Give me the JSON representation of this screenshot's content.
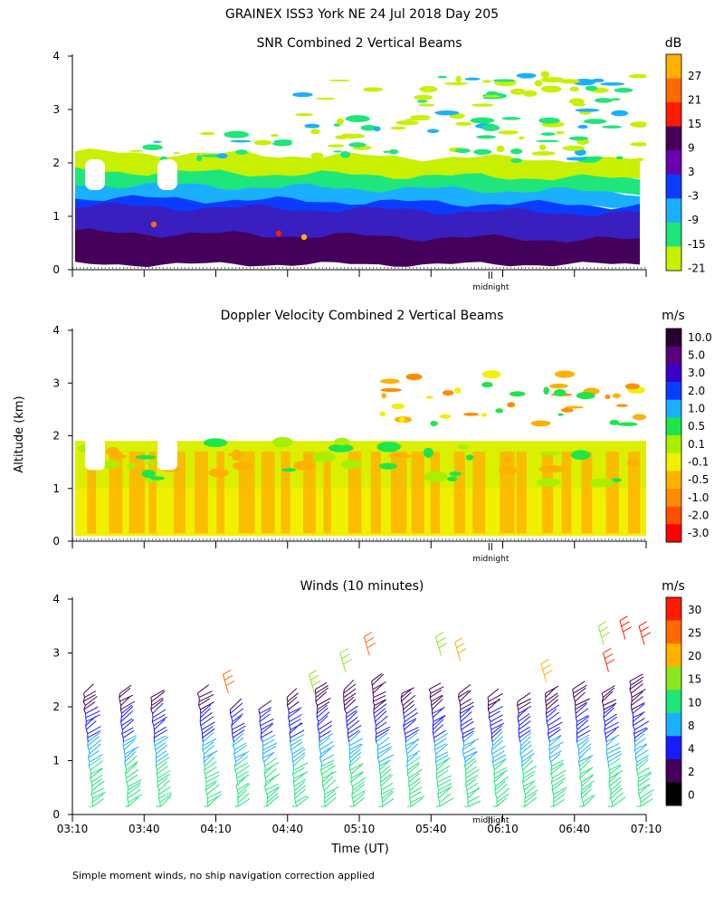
{
  "figure": {
    "title": "GRAINEX ISS3 York NE  24 Jul 2018 Day 205",
    "footnote": "Simple moment winds, no ship navigation correction applied",
    "shared_ylabel": "Altitude (km)",
    "xlabel": "Time (UT)",
    "midnight_label": "midnight"
  },
  "chart_data": [
    {
      "type": "heatmap",
      "title": "SNR Combined 2 Vertical Beams",
      "ylabel": "Altitude (km)",
      "ylim": [
        0,
        4
      ],
      "yticks": [
        "0",
        "1",
        "2",
        "3",
        "4"
      ],
      "xlim_minutes": [
        190,
        430
      ],
      "colorbar_unit": "dB",
      "colorbar_labels": [
        "27",
        "21",
        "15",
        "9",
        "3",
        "-3",
        "-9",
        "-15",
        "-21"
      ],
      "colorbar_colors": [
        "#ffb000",
        "#ff6a00",
        "#ff1a00",
        "#44005a",
        "#6a00b0",
        "#0a3cff",
        "#1ab0ff",
        "#1ee67a",
        "#c8f000"
      ],
      "field_layers": [
        {
          "from_km": 0.1,
          "to_km": 0.7,
          "db_level": "9",
          "color": "#44005a"
        },
        {
          "from_km": 0.5,
          "to_km": 1.2,
          "db_level": "3",
          "color": "#3a1fc0"
        },
        {
          "from_km": 0.9,
          "to_km": 1.35,
          "db_level": "-3",
          "color": "#0a3cff"
        },
        {
          "from_km": 1.2,
          "to_km": 1.6,
          "db_level": "-9",
          "color": "#1ab0ff"
        },
        {
          "from_km": 1.45,
          "to_km": 1.85,
          "db_level": "-15",
          "color": "#1ee67a"
        },
        {
          "from_km": 1.7,
          "to_km": 2.2,
          "db_level": "-21",
          "color": "#c8f000"
        }
      ]
    },
    {
      "type": "heatmap",
      "title": "Doppler Velocity Combined 2 Vertical Beams",
      "ylabel": "Altitude (km)",
      "ylim": [
        0,
        4
      ],
      "yticks": [
        "0",
        "1",
        "2",
        "3",
        "4"
      ],
      "xlim_minutes": [
        190,
        430
      ],
      "colorbar_unit": "m/s",
      "colorbar_labels": [
        "10.0",
        "5.0",
        "3.0",
        "2.0",
        "1.0",
        "0.5",
        "0.1",
        "-0.1",
        "-0.5",
        "-1.0",
        "-2.0",
        "-3.0"
      ],
      "colorbar_colors": [
        "#2a0030",
        "#5a007a",
        "#3a00c8",
        "#0a3cff",
        "#1ab0ff",
        "#1ee64a",
        "#a8f000",
        "#f0f000",
        "#ffb000",
        "#ff8c00",
        "#ff5000",
        "#ff0000"
      ],
      "field_layers": [
        {
          "from_km": 0.1,
          "to_km": 1.9,
          "mps_level": "-0.1",
          "color": "#f0f000"
        },
        {
          "from_km": 1.0,
          "to_km": 1.9,
          "mps_level": "0.1",
          "color": "#a8f000"
        }
      ]
    },
    {
      "type": "scatter",
      "title": "Winds (10 minutes)",
      "ylabel": "Altitude (km)",
      "ylim": [
        0,
        4
      ],
      "yticks": [
        "0",
        "1",
        "2",
        "3",
        "4"
      ],
      "xlim_minutes": [
        190,
        430
      ],
      "xtick_minutes": [
        190,
        220,
        250,
        280,
        310,
        340,
        370,
        400,
        430
      ],
      "xtick_labels": [
        "03:10",
        "03:40",
        "04:10",
        "04:40",
        "05:10",
        "05:40",
        "06:10",
        "06:40",
        "07:10"
      ],
      "midnight_minutes": 365,
      "colorbar_unit": "m/s",
      "colorbar_labels": [
        "30",
        "25",
        "20",
        "15",
        "10",
        "8",
        "4",
        "2",
        "0"
      ],
      "colorbar_colors": [
        "#ff1a00",
        "#ff6a00",
        "#ffb000",
        "#8ce61e",
        "#1ee67a",
        "#1ab0ff",
        "#1a1aff",
        "#44005a",
        "#000000"
      ],
      "profile_minutes": [
        197,
        212,
        225,
        245,
        258,
        270,
        282,
        294,
        306,
        318,
        330,
        342,
        354,
        366,
        378,
        390,
        402,
        414,
        426
      ],
      "profile_top_km": [
        2.3,
        2.25,
        2.2,
        2.3,
        2.0,
        2.0,
        2.2,
        2.4,
        2.4,
        2.5,
        2.3,
        2.4,
        2.3,
        2.2,
        2.1,
        2.3,
        2.4,
        2.3,
        2.5
      ],
      "upper_barbs": [
        {
          "minute": 253,
          "km": 2.6,
          "speed": 25
        },
        {
          "minute": 289,
          "km": 2.6,
          "speed": 15
        },
        {
          "minute": 302,
          "km": 3.0,
          "speed": 15
        },
        {
          "minute": 312,
          "km": 3.3,
          "speed": 25
        },
        {
          "minute": 342,
          "km": 3.3,
          "speed": 15
        },
        {
          "minute": 350,
          "km": 3.2,
          "speed": 20
        },
        {
          "minute": 386,
          "km": 2.8,
          "speed": 20
        },
        {
          "minute": 410,
          "km": 3.5,
          "speed": 15
        },
        {
          "minute": 419,
          "km": 3.6,
          "speed": 30
        },
        {
          "minute": 412,
          "km": 3.0,
          "speed": 30
        },
        {
          "minute": 427,
          "km": 3.5,
          "speed": 30
        }
      ]
    }
  ]
}
